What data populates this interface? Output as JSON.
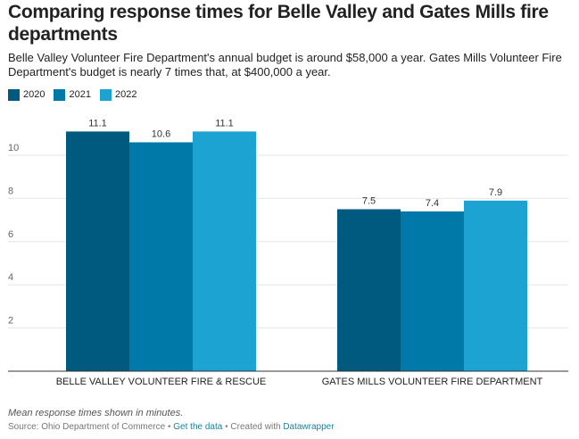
{
  "title": "Comparing response times for Belle Valley and Gates Mills fire departments",
  "subtitle": "Belle Valley Volunteer Fire Department's annual budget is around $58,000 a year. Gates Mills Volunteer Fire Department's budget is nearly 7 times that, at $400,000 a year.",
  "notes": "Mean response times shown in minutes.",
  "footer": {
    "source": "Source: Ohio Department of Commerce",
    "separator": "•",
    "get_data": "Get the data",
    "created_with": "Created with",
    "tool": "Datawrapper"
  },
  "colors": {
    "2020": "#005a7f",
    "2021": "#0079a8",
    "2022": "#1ca3d1",
    "grid": "#e6e6e6",
    "axis": "#333333"
  },
  "chart_data": {
    "type": "bar",
    "categories": [
      "BELLE VALLEY VOLUNTEER FIRE & RESCUE",
      "GATES MILLS VOLUNTEER FIRE DEPARTMENT"
    ],
    "series": [
      {
        "name": "2020",
        "values": [
          11.1,
          7.5
        ],
        "labels": [
          "11.1",
          "7.5"
        ]
      },
      {
        "name": "2021",
        "values": [
          10.6,
          7.4
        ],
        "labels": [
          "10.6",
          "7.4"
        ]
      },
      {
        "name": "2022",
        "values": [
          11.1,
          7.9
        ],
        "labels": [
          "11.1",
          "7.9"
        ]
      }
    ],
    "y_ticks": [
      2,
      4,
      6,
      8,
      10
    ],
    "ylim": [
      0,
      12
    ],
    "grid": true,
    "legend_position": "top-left",
    "xlabel": "",
    "ylabel": ""
  }
}
